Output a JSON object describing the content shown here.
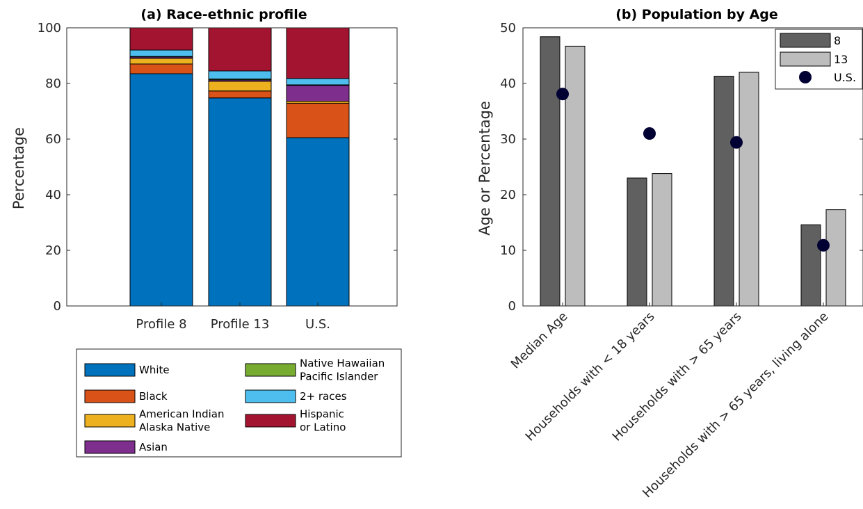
{
  "chart_data": [
    {
      "type": "bar",
      "stacked": true,
      "title": "(a) Race-ethnic profile",
      "xlabel": "",
      "ylabel": "Percentage",
      "ylim": [
        0,
        100
      ],
      "yticks": [
        0,
        20,
        40,
        60,
        80,
        100
      ],
      "categories": [
        "Profile 8",
        "Profile 13",
        "U.S."
      ],
      "legend_position": "below",
      "series": [
        {
          "name": "White",
          "color": "#0072BD",
          "values": [
            83.5,
            74.8,
            60.5
          ]
        },
        {
          "name": "Black",
          "color": "#D95319",
          "values": [
            3.5,
            2.5,
            12.4
          ]
        },
        {
          "name": "American Indian\nAlaska Native",
          "color": "#EDB120",
          "values": [
            2.0,
            3.5,
            0.7
          ]
        },
        {
          "name": "Asian",
          "color": "#7E2F8E",
          "values": [
            0.5,
            0.5,
            5.7
          ]
        },
        {
          "name": "Native Hawaiian\nPacific Islander",
          "color": "#77AC30",
          "values": [
            0.2,
            0.3,
            0.2
          ]
        },
        {
          "name": "2+ races",
          "color": "#4DBEEE",
          "values": [
            2.3,
            2.9,
            2.3
          ]
        },
        {
          "name": "Hispanic\nor Latino",
          "color": "#A2142F",
          "values": [
            8.0,
            15.5,
            18.2
          ]
        }
      ]
    },
    {
      "type": "bar",
      "title": "(b) Population by Age",
      "xlabel": "",
      "ylabel": "Age or Percentage",
      "ylim": [
        0,
        50
      ],
      "yticks": [
        0,
        10,
        20,
        30,
        40,
        50
      ],
      "categories": [
        "Median Age",
        "Households with < 18 years",
        "Households with > 65 years",
        "Households with > 65 years, living alone"
      ],
      "legend_position": "top-right",
      "series": [
        {
          "name": "8",
          "kind": "bar",
          "color": "#606060",
          "values": [
            48.4,
            23.0,
            41.3,
            14.6
          ]
        },
        {
          "name": "13",
          "kind": "bar",
          "color": "#BDBDBD",
          "values": [
            46.7,
            23.8,
            42.0,
            17.3
          ]
        },
        {
          "name": "U.S.",
          "kind": "marker",
          "color": "#000033",
          "values": [
            38.1,
            31.0,
            29.4,
            10.9
          ]
        }
      ]
    }
  ]
}
